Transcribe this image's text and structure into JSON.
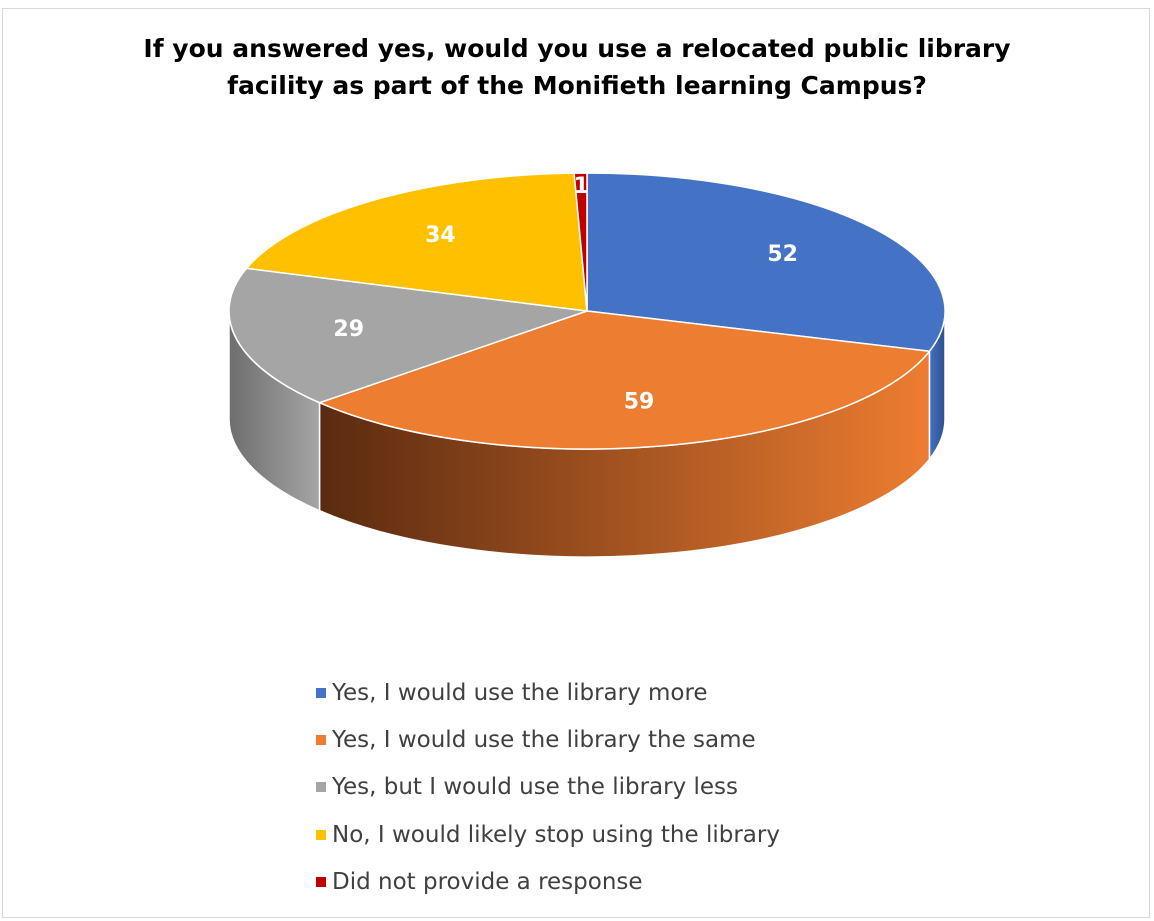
{
  "chart_data": {
    "type": "pie",
    "title_lines": [
      "If you answered yes, would you use a relocated public library",
      "facility as part of the Monifieth learning Campus?"
    ],
    "slices": [
      {
        "label": "Yes, I would use the library more",
        "value": 52,
        "color": "#4472C4",
        "side_dark": "#2E4F8A"
      },
      {
        "label": "Yes, I would use the library the same",
        "value": 59,
        "color": "#ED7D31",
        "side_dark": "#5A2A10"
      },
      {
        "label": "Yes, but I would use the library less",
        "value": 29,
        "color": "#A5A5A5",
        "side_dark": "#6E6E6E"
      },
      {
        "label": "No, I would likely stop using the library",
        "value": 34,
        "color": "#FFC000",
        "side_dark": "#9E7700"
      },
      {
        "label": "Did not provide a response",
        "value": 1,
        "color": "#C00000",
        "side_dark": "#7A0000"
      }
    ],
    "data_labels": [
      "52",
      "59",
      "29",
      "34",
      "1"
    ],
    "legend_position": "bottom",
    "style": "3d"
  }
}
